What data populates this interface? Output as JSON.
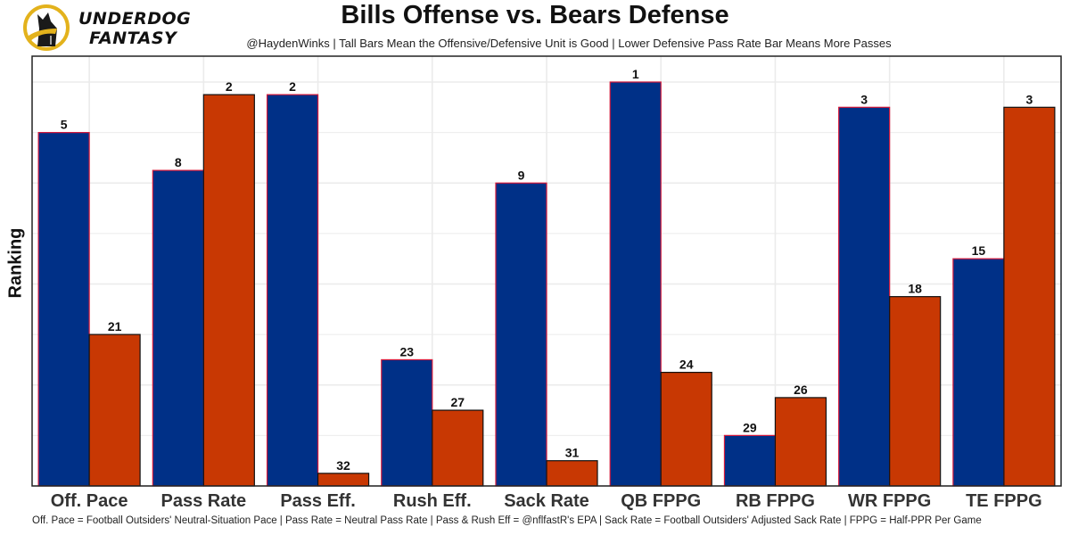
{
  "brand": {
    "line1": "UNDERDOG",
    "line2": "FANTASY",
    "colors": {
      "ring": "#e3b21c",
      "dog": "#1a1a1a"
    }
  },
  "colors": {
    "offense": "#003087",
    "offense_border": "#d5183a",
    "defense": "#c83803",
    "defense_border": "#111111",
    "grid": "#ebebeb"
  },
  "chart_data": {
    "type": "bar",
    "title": "Bills Offense vs. Bears Defense",
    "subtitle": "@HaydenWinks | Tall Bars Mean the Offensive/Defensive Unit is Good | Lower Defensive Pass Rate Bar Means More Passes",
    "caption": "Off. Pace = Football Outsiders' Neutral-Situation Pace | Pass Rate = Neutral Pass Rate | Pass & Rush Eff = @nflfastR's EPA | Sack Rate = Football Outsiders' Adjusted Sack Rate | FPPG = Half-PPR Per Game",
    "xlabel": "",
    "ylabel": "Ranking",
    "y_is_inverted_rank": true,
    "rank_max": 32,
    "grid": true,
    "legend": "none",
    "categories": [
      "Off. Pace",
      "Pass Rate",
      "Pass Eff.",
      "Rush Eff.",
      "Sack Rate",
      "QB FPPG",
      "RB FPPG",
      "WR FPPG",
      "TE FPPG"
    ],
    "series": [
      {
        "name": "Bills Offense",
        "values": [
          5,
          8,
          2,
          23,
          9,
          1,
          29,
          3,
          15
        ]
      },
      {
        "name": "Bears Defense",
        "values": [
          21,
          2,
          32,
          27,
          31,
          24,
          26,
          18,
          3
        ]
      }
    ]
  }
}
